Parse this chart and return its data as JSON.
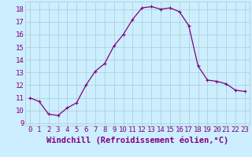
{
  "x": [
    0,
    1,
    2,
    3,
    4,
    5,
    6,
    7,
    8,
    9,
    10,
    11,
    12,
    13,
    14,
    15,
    16,
    17,
    18,
    19,
    20,
    21,
    22,
    23
  ],
  "y": [
    11.0,
    10.7,
    9.7,
    9.6,
    10.2,
    10.6,
    12.0,
    13.1,
    13.7,
    15.1,
    16.0,
    17.2,
    18.1,
    18.2,
    18.0,
    18.1,
    17.8,
    16.7,
    13.5,
    12.4,
    12.3,
    12.1,
    11.6,
    11.5
  ],
  "line_color": "#800080",
  "marker": "+",
  "marker_size": 3,
  "marker_edge_width": 0.8,
  "bg_color": "#cceeff",
  "grid_color": "#aacccc",
  "xlabel": "Windchill (Refroidissement éolien,°C)",
  "xlim": [
    -0.5,
    23.5
  ],
  "ylim": [
    8.8,
    18.6
  ],
  "yticks": [
    9,
    10,
    11,
    12,
    13,
    14,
    15,
    16,
    17,
    18
  ],
  "xticks": [
    0,
    1,
    2,
    3,
    4,
    5,
    6,
    7,
    8,
    9,
    10,
    11,
    12,
    13,
    14,
    15,
    16,
    17,
    18,
    19,
    20,
    21,
    22,
    23
  ],
  "tick_fontsize": 6.5,
  "xlabel_fontsize": 7.5,
  "line_width": 0.9
}
